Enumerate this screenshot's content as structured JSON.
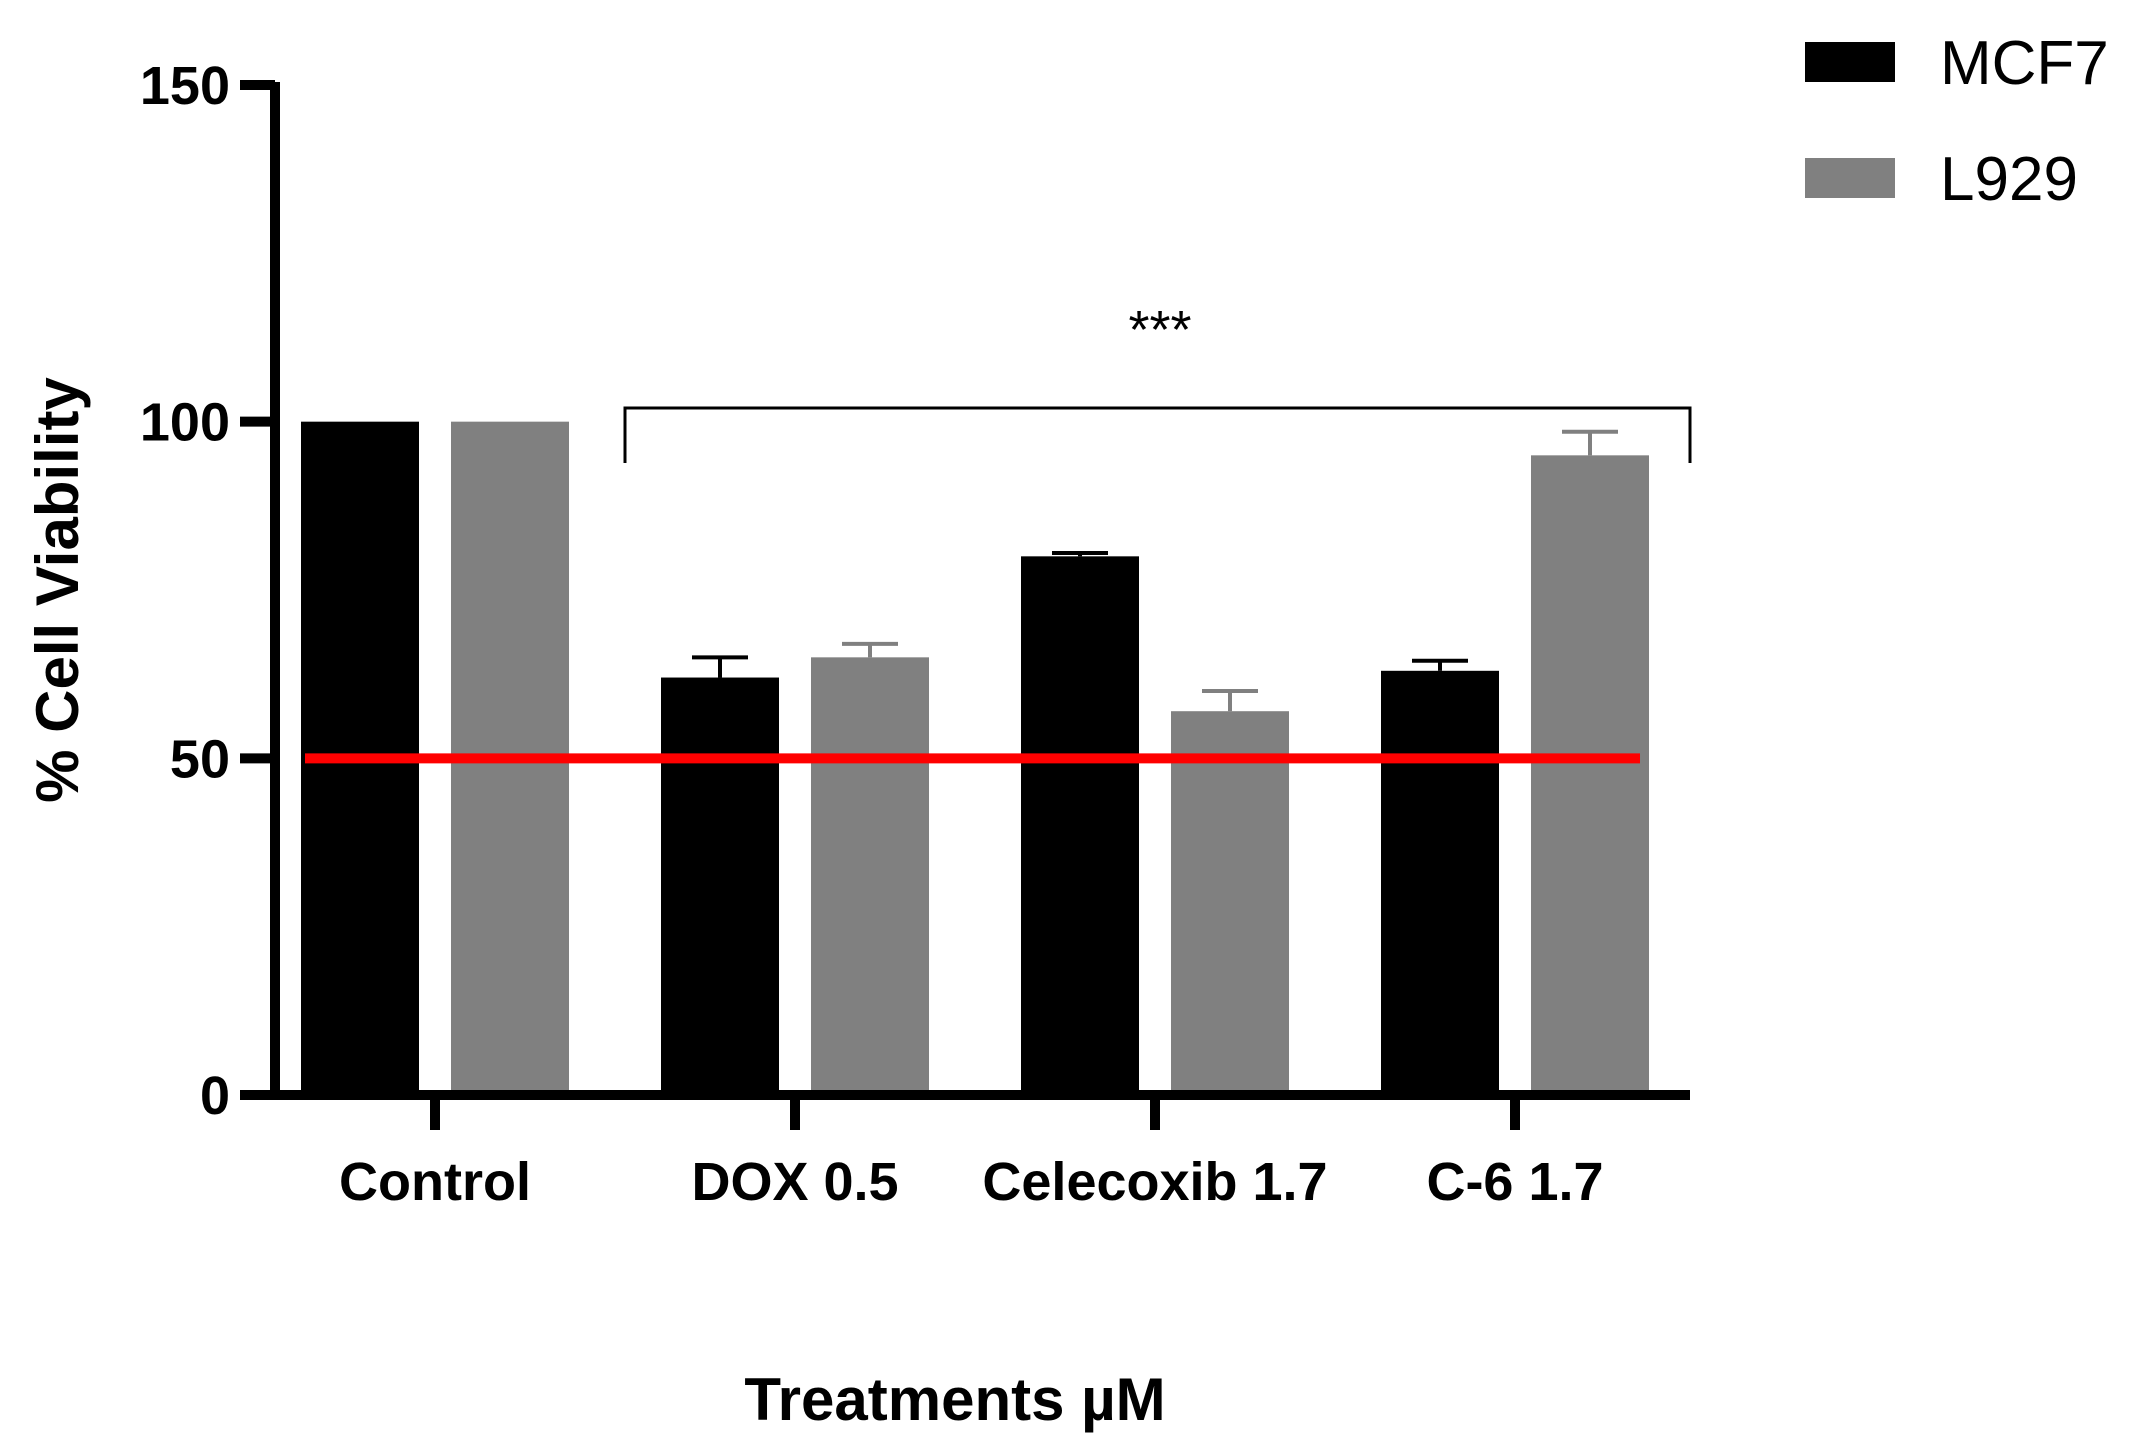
{
  "chart_data": {
    "type": "bar",
    "categories": [
      "Control",
      "DOX 0.5",
      "Celecoxib 1.7",
      "C-6 1.7"
    ],
    "series": [
      {
        "name": "MCF7",
        "color": "#000000",
        "values": [
          100,
          62,
          80,
          63
        ],
        "errors": [
          0,
          3,
          0.5,
          1.5
        ]
      },
      {
        "name": "L929",
        "color": "#808080",
        "values": [
          100,
          65,
          57,
          95
        ],
        "errors": [
          0,
          2,
          3,
          3.5
        ]
      }
    ],
    "xlabel": "Treatments µM",
    "ylabel": "% Cell Viability",
    "ylim": [
      0,
      150
    ],
    "yticks": [
      "0",
      "50",
      "100",
      "150"
    ],
    "reference_line": {
      "y": 50,
      "color": "#ff0000"
    },
    "annotation": {
      "text": "***",
      "spans": [
        "DOX 0.5",
        "C-6 1.7"
      ]
    },
    "legend_position": "top-right",
    "grid": false
  }
}
